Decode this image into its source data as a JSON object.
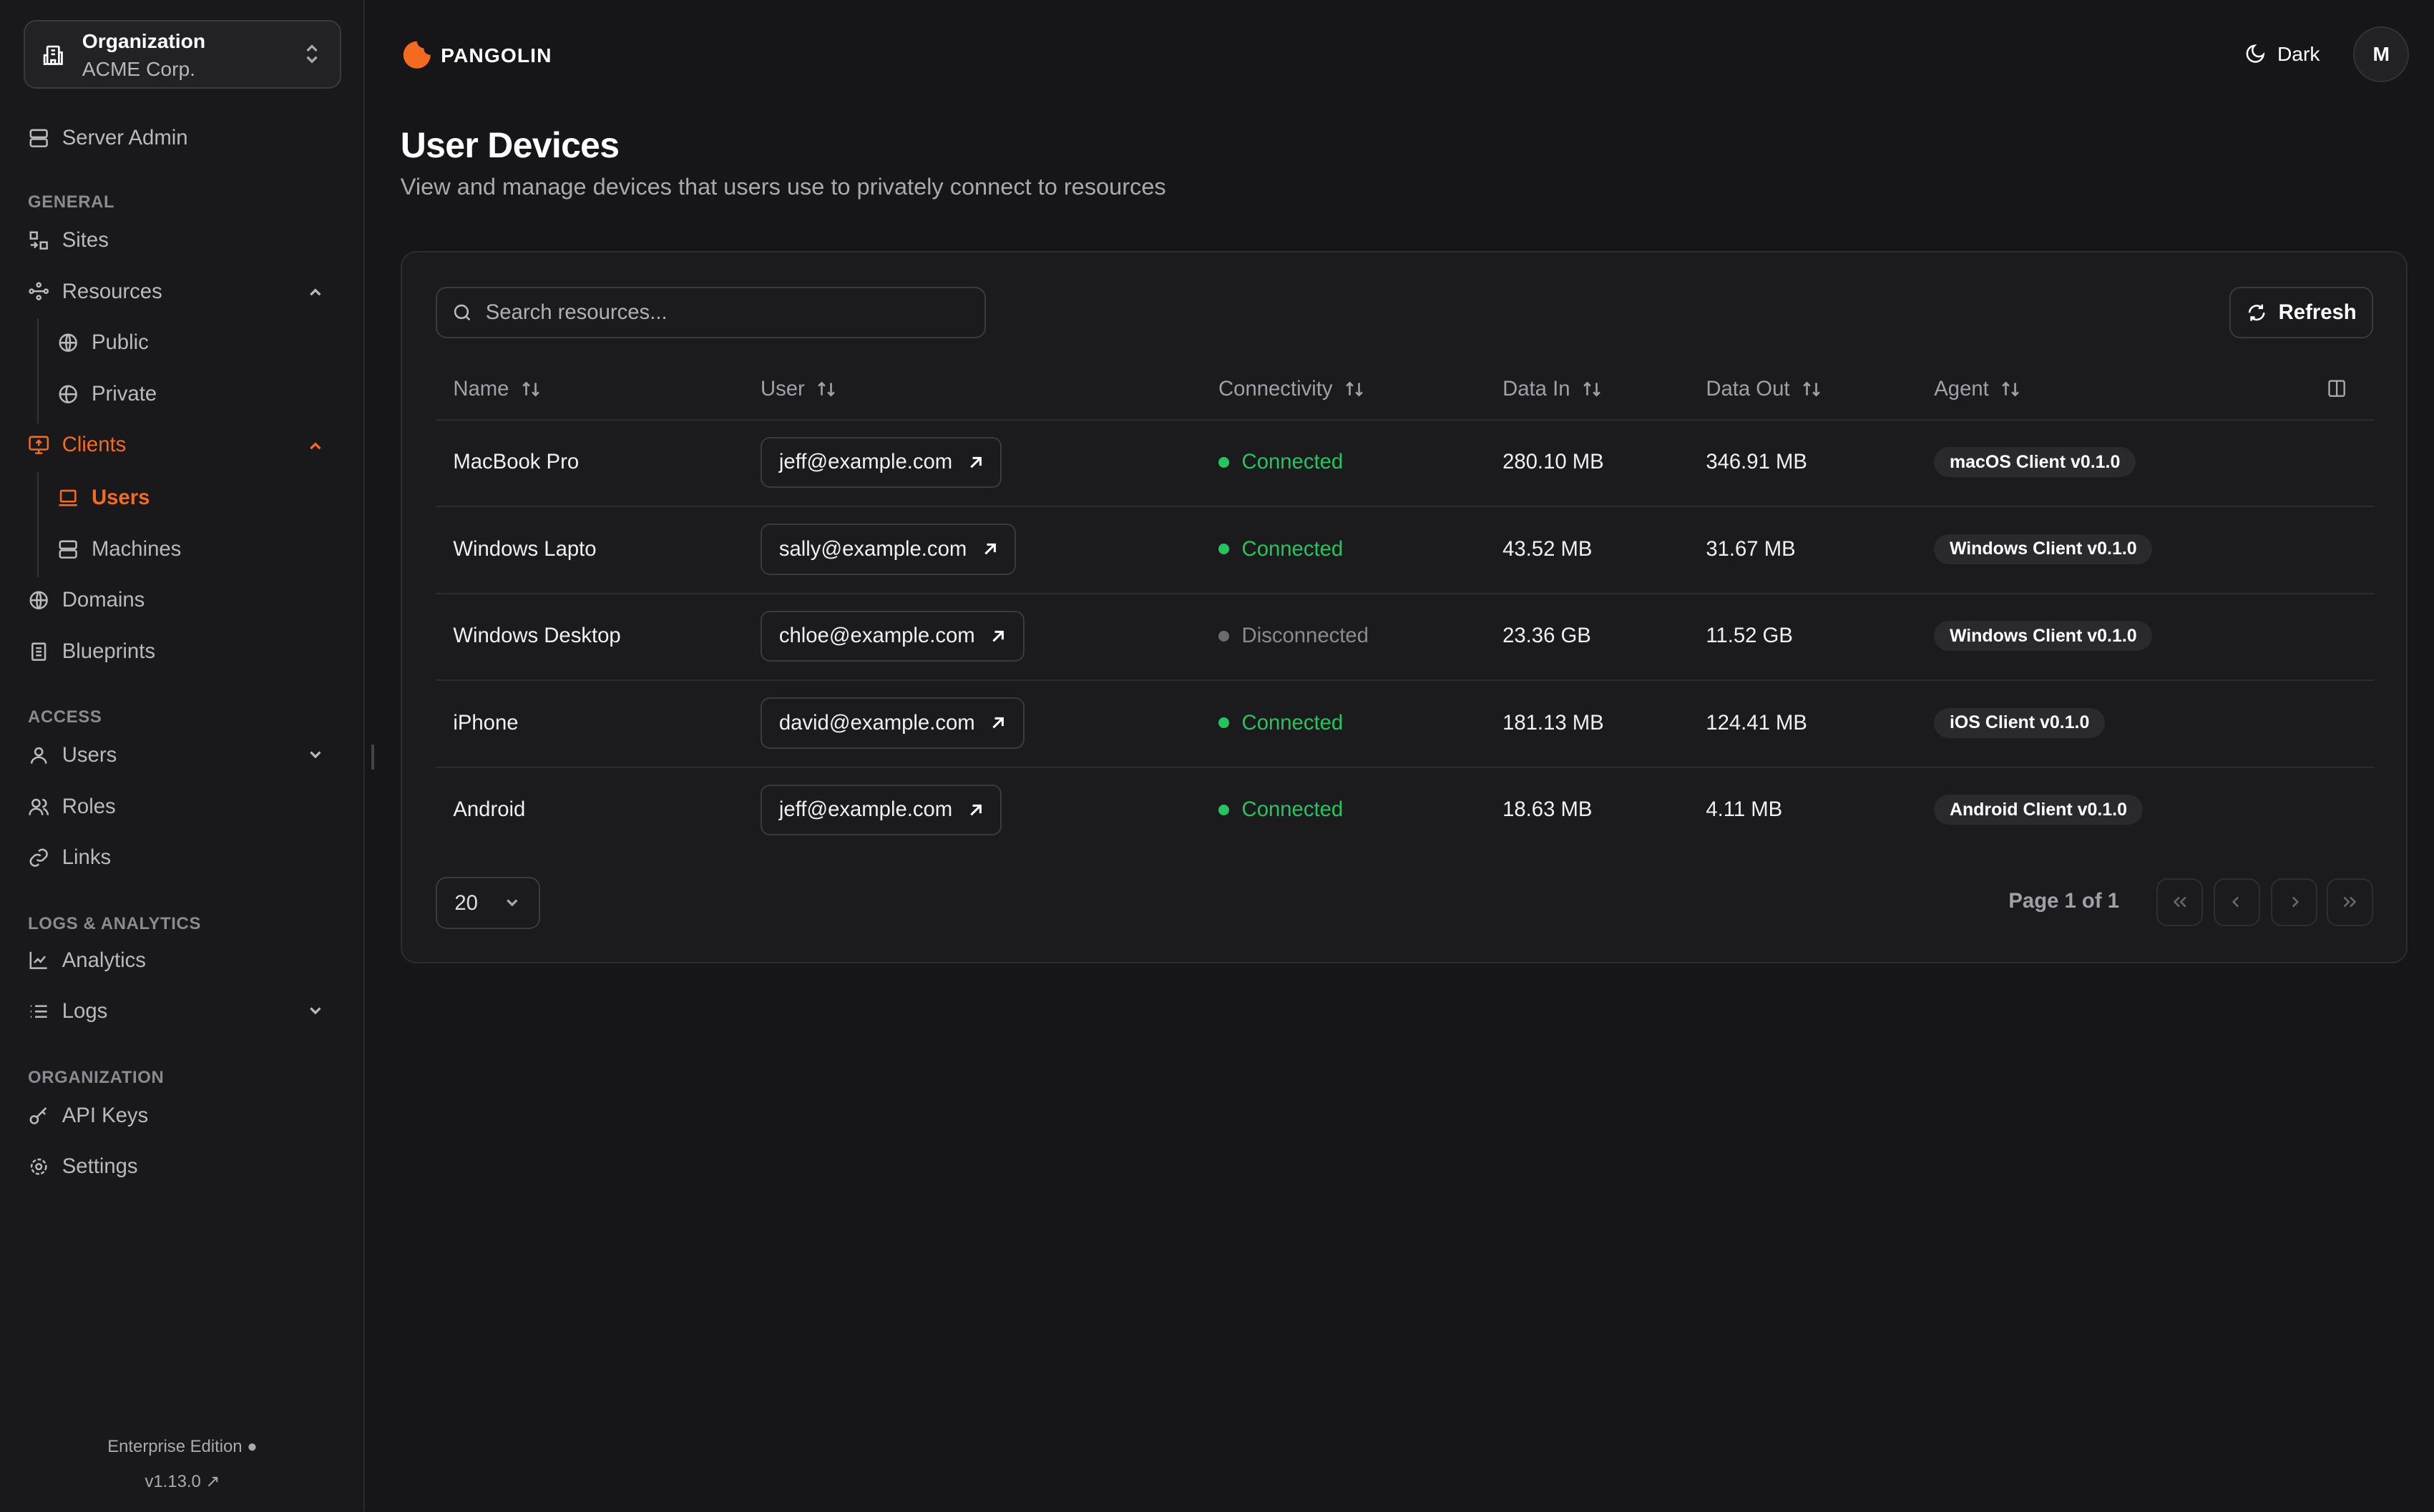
{
  "org": {
    "label": "Organization",
    "name": "ACME Corp."
  },
  "sidebar": {
    "server_admin": "Server Admin",
    "sections": {
      "general": "GENERAL",
      "access": "ACCESS",
      "logs": "LOGS & ANALYTICS",
      "organization": "ORGANIZATION"
    },
    "items": {
      "sites": "Sites",
      "resources": "Resources",
      "public": "Public",
      "private": "Private",
      "clients": "Clients",
      "users": "Users",
      "machines": "Machines",
      "domains": "Domains",
      "blueprints": "Blueprints",
      "access_users": "Users",
      "roles": "Roles",
      "links": "Links",
      "analytics": "Analytics",
      "logs": "Logs",
      "api_keys": "API Keys",
      "settings": "Settings"
    },
    "footer": {
      "edition": "Enterprise Edition",
      "version": "v1.13.0"
    }
  },
  "header": {
    "brand": "PANGOLIN",
    "theme_label": "Dark",
    "avatar": "M"
  },
  "page": {
    "title": "User Devices",
    "subtitle": "View and manage devices that users use to privately connect to resources"
  },
  "toolbar": {
    "search_placeholder": "Search resources...",
    "refresh": "Refresh"
  },
  "table": {
    "columns": [
      "Name",
      "User",
      "Connectivity",
      "Data In",
      "Data Out",
      "Agent"
    ],
    "rows": [
      {
        "name": "MacBook Pro",
        "user": "jeff@example.com",
        "status": "Connected",
        "data_in": "280.10 MB",
        "data_out": "346.91 MB",
        "agent": "macOS Client v0.1.0"
      },
      {
        "name": "Windows Lapto",
        "user": "sally@example.com",
        "status": "Connected",
        "data_in": "43.52 MB",
        "data_out": "31.67 MB",
        "agent": "Windows Client v0.1.0"
      },
      {
        "name": "Windows Desktop",
        "user": "chloe@example.com",
        "status": "Disconnected",
        "data_in": "23.36 GB",
        "data_out": "11.52 GB",
        "agent": "Windows Client v0.1.0"
      },
      {
        "name": "iPhone",
        "user": "david@example.com",
        "status": "Connected",
        "data_in": "181.13 MB",
        "data_out": "124.41 MB",
        "agent": "iOS Client v0.1.0"
      },
      {
        "name": "Android",
        "user": "jeff@example.com",
        "status": "Connected",
        "data_in": "18.63 MB",
        "data_out": "4.11 MB",
        "agent": "Android Client v0.1.0"
      }
    ]
  },
  "pagination": {
    "page_size": "20",
    "page_info": "Page 1 of 1"
  },
  "colors": {
    "accent": "#f46a1f",
    "connected": "#22c55e",
    "disconnected": "#6b6b72"
  }
}
